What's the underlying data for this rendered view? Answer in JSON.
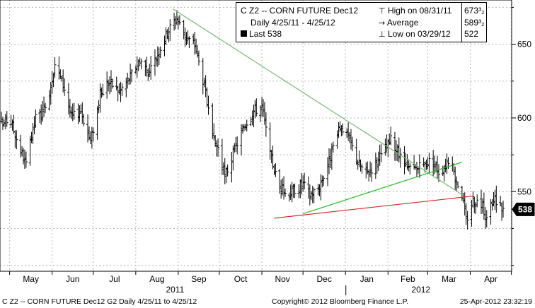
{
  "legend": {
    "ticker": "C Z2 -- CORN FUTURE  Dec12",
    "period": "Daily 4/25/11 - 4/25/12",
    "last_label": "Last 538",
    "high_label": "High on 08/31/11",
    "high_value": "673³₂",
    "avg_label": "Average",
    "avg_value": "589³₂",
    "low_label": "Low on 03/29/12",
    "low_value": "522"
  },
  "footer": {
    "left": "C Z2 -- CORN FUTURE  Dec12   G2  Daily  4/25/11 to 4/25/12",
    "center": "Copyright© 2012 Bloomberg Finance L.P.",
    "right": "25-Apr-2012 23:32:19"
  },
  "chart_data": {
    "type": "ohlc",
    "x_type": "date",
    "x_range": [
      "2011-04-25",
      "2012-04-25"
    ],
    "ylim": [
      496,
      680
    ],
    "y_ticks": [
      550,
      600,
      650
    ],
    "grid": true,
    "months": [
      "May",
      "Jun",
      "Jul",
      "Aug",
      "Sep",
      "Oct",
      "Nov",
      "Dec",
      "Jan",
      "Feb",
      "Mar",
      "Apr"
    ],
    "years": [
      "2011",
      "2012"
    ],
    "last_value": 538,
    "high": 673.375,
    "average": 589.375,
    "low": 522,
    "anchors": [
      [
        "2011-04-25",
        595
      ],
      [
        "2011-05-01",
        600
      ],
      [
        "2011-05-09",
        578
      ],
      [
        "2011-05-13",
        568
      ],
      [
        "2011-05-20",
        600
      ],
      [
        "2011-05-27",
        605
      ],
      [
        "2011-06-03",
        637
      ],
      [
        "2011-06-10",
        620
      ],
      [
        "2011-06-15",
        600
      ],
      [
        "2011-06-22",
        605
      ],
      [
        "2011-06-29",
        584
      ],
      [
        "2011-07-06",
        615
      ],
      [
        "2011-07-12",
        625
      ],
      [
        "2011-07-20",
        618
      ],
      [
        "2011-07-28",
        628
      ],
      [
        "2011-08-04",
        640
      ],
      [
        "2011-08-11",
        630
      ],
      [
        "2011-08-19",
        648
      ],
      [
        "2011-08-25",
        660
      ],
      [
        "2011-08-31",
        668
      ],
      [
        "2011-09-06",
        655
      ],
      [
        "2011-09-13",
        650
      ],
      [
        "2011-09-20",
        622
      ],
      [
        "2011-09-26",
        585
      ],
      [
        "2011-09-30",
        580
      ],
      [
        "2011-10-05",
        560
      ],
      [
        "2011-10-12",
        578
      ],
      [
        "2011-10-19",
        595
      ],
      [
        "2011-10-26",
        605
      ],
      [
        "2011-11-01",
        608
      ],
      [
        "2011-11-07",
        575
      ],
      [
        "2011-11-13",
        555
      ],
      [
        "2011-11-19",
        548
      ],
      [
        "2011-11-25",
        552
      ],
      [
        "2011-12-01",
        555
      ],
      [
        "2011-12-06",
        548
      ],
      [
        "2011-12-12",
        552
      ],
      [
        "2011-12-19",
        568
      ],
      [
        "2011-12-23",
        580
      ],
      [
        "2011-12-29",
        595
      ],
      [
        "2012-01-04",
        585
      ],
      [
        "2012-01-10",
        570
      ],
      [
        "2012-01-16",
        562
      ],
      [
        "2012-01-22",
        568
      ],
      [
        "2012-01-28",
        575
      ],
      [
        "2012-02-03",
        585
      ],
      [
        "2012-02-09",
        575
      ],
      [
        "2012-02-15",
        565
      ],
      [
        "2012-02-21",
        565
      ],
      [
        "2012-02-27",
        568
      ],
      [
        "2012-03-04",
        572
      ],
      [
        "2012-03-10",
        562
      ],
      [
        "2012-03-16",
        572
      ],
      [
        "2012-03-22",
        558
      ],
      [
        "2012-03-26",
        548
      ],
      [
        "2012-03-29",
        530
      ],
      [
        "2012-04-03",
        545
      ],
      [
        "2012-04-09",
        542
      ],
      [
        "2012-04-13",
        532
      ],
      [
        "2012-04-19",
        545
      ],
      [
        "2012-04-25",
        538
      ]
    ],
    "trendlines": [
      {
        "color": "#79b879",
        "from": [
          "2011-08-28",
          674
        ],
        "to": [
          "2012-03-26",
          548
        ]
      },
      {
        "color": "#22b822",
        "from": [
          "2011-12-01",
          535
        ],
        "to": [
          "2012-03-26",
          570
        ]
      },
      {
        "color": "#d62828",
        "from": [
          "2011-11-10",
          532
        ],
        "to": [
          "2012-04-03",
          547
        ]
      }
    ]
  }
}
